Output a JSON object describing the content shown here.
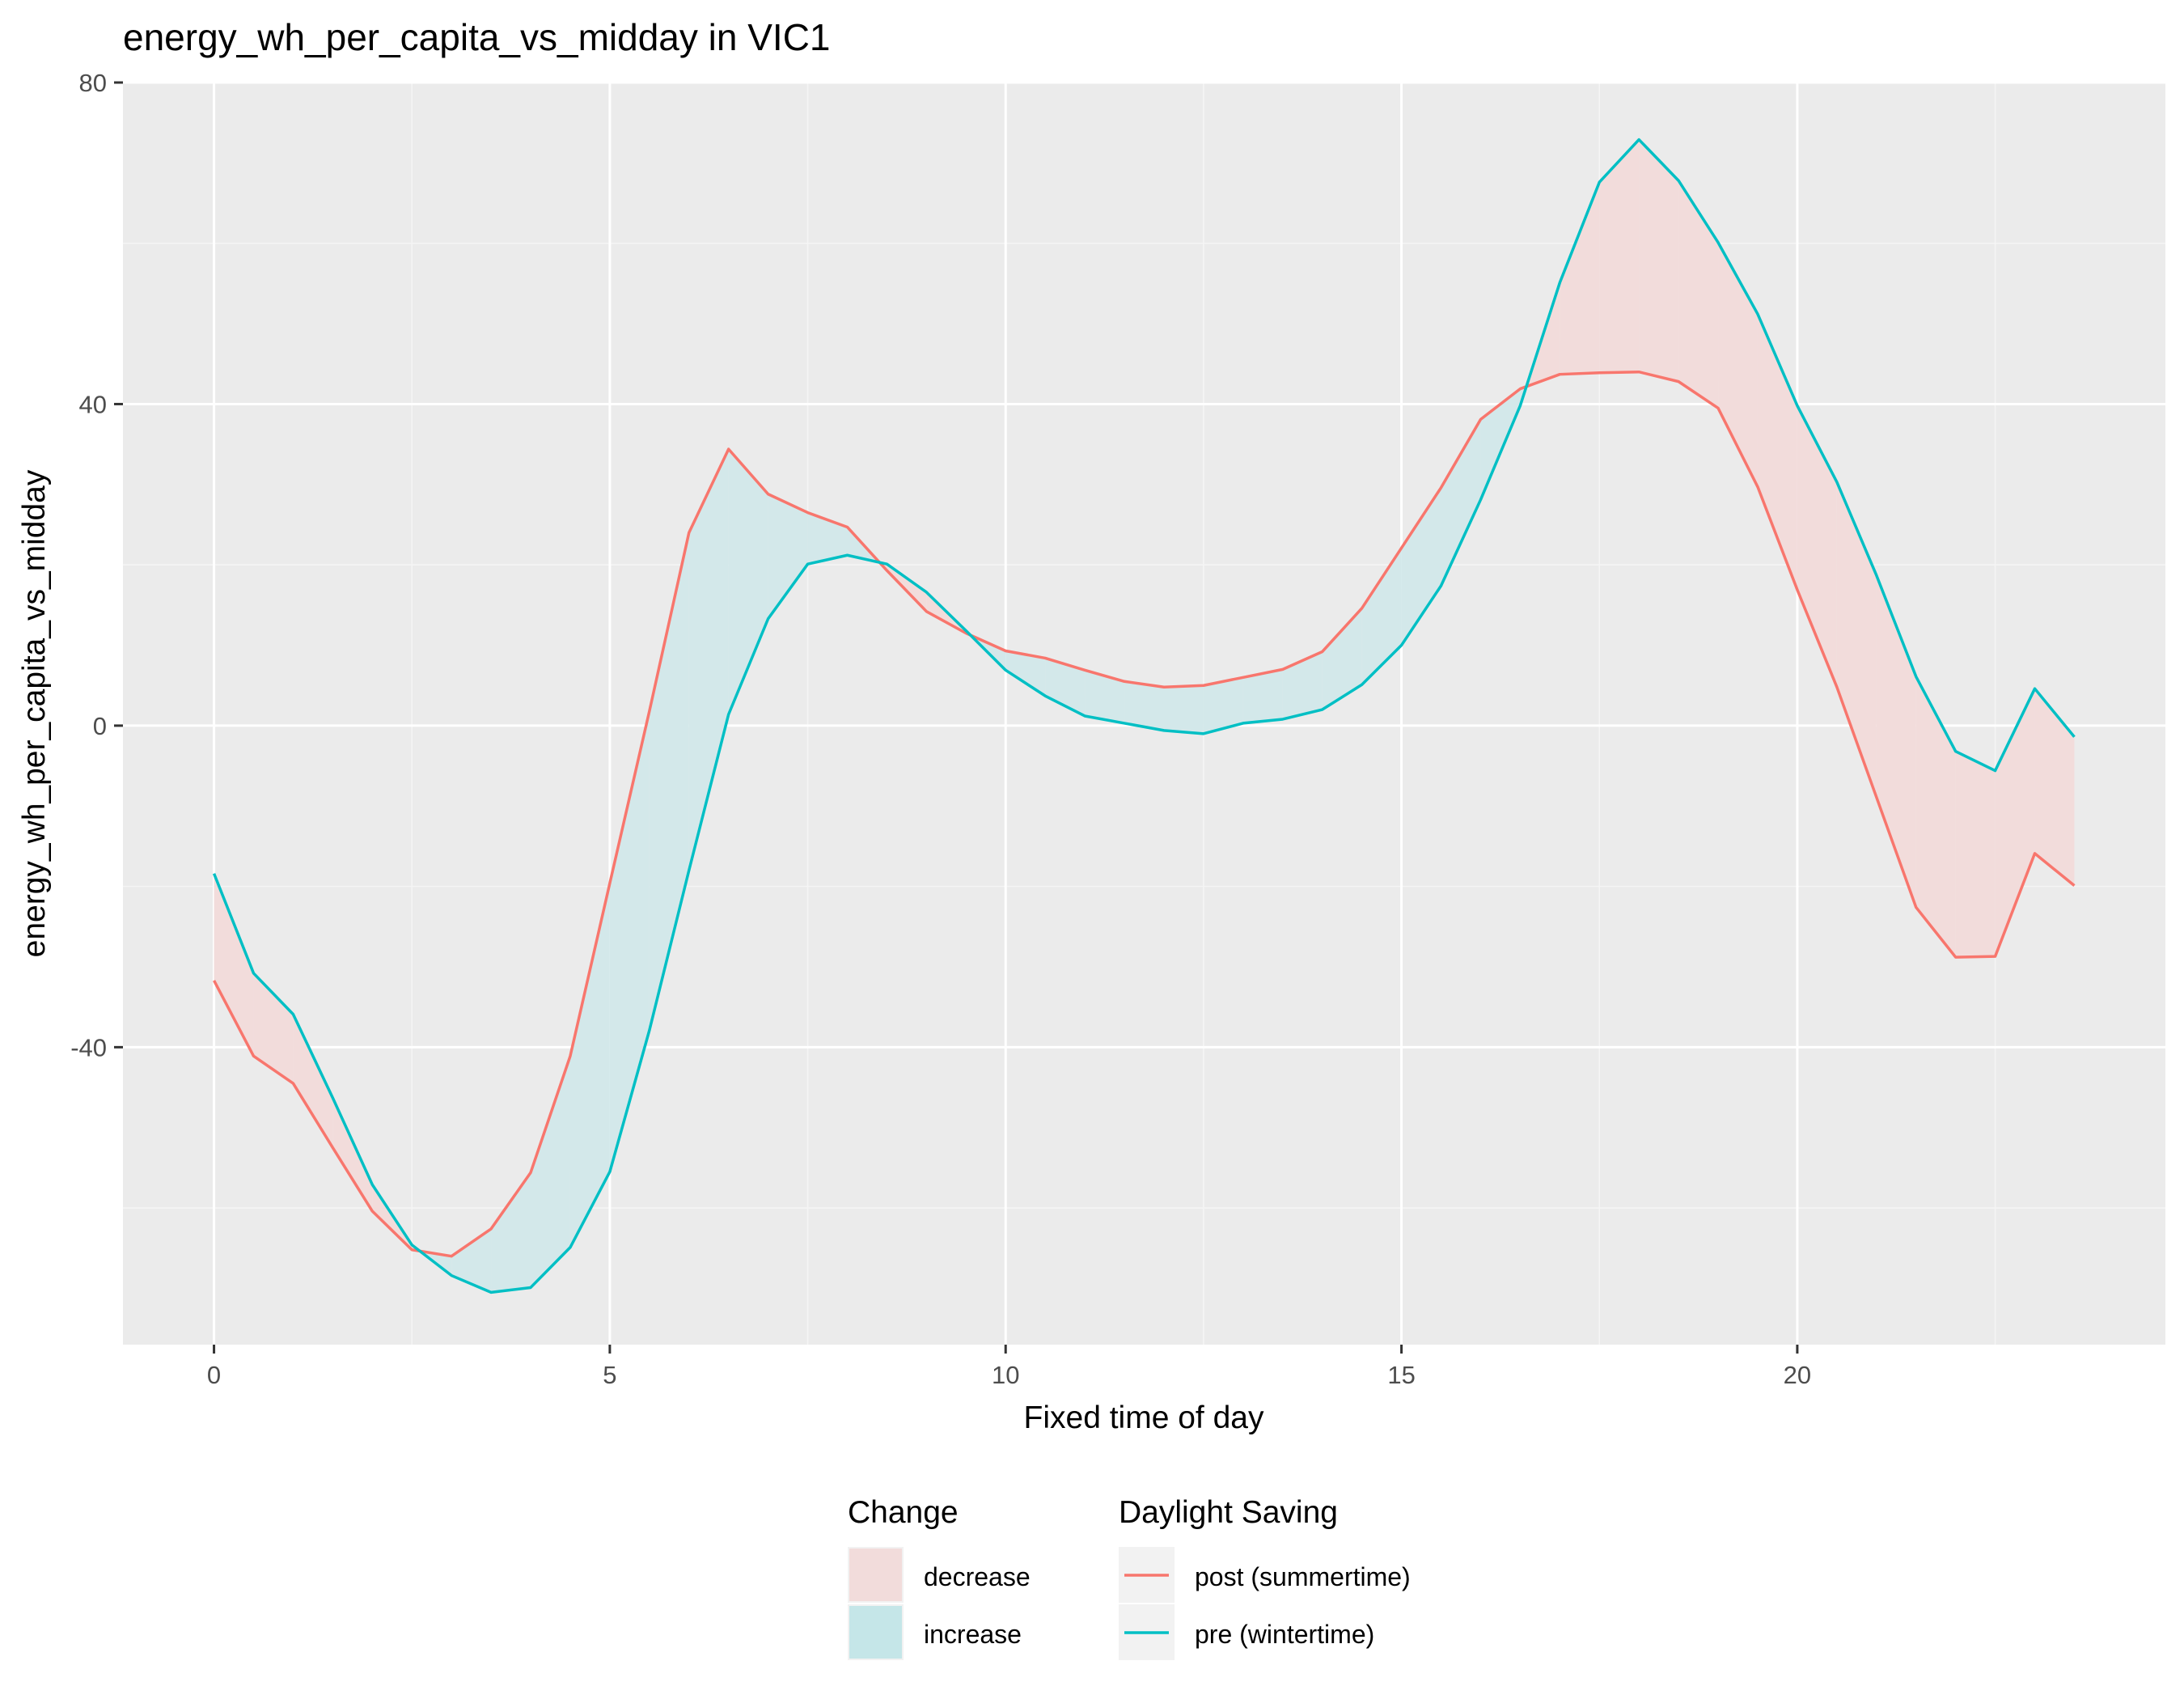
{
  "chart_data": {
    "type": "line",
    "title": "energy_wh_per_capita_vs_midday in VIC1",
    "xlabel": "Fixed time of day",
    "ylabel": "energy_wh_per_capita_vs_midday",
    "xlim": [
      -1.15,
      24.65
    ],
    "ylim": [
      -77,
      80
    ],
    "x_ticks": [
      0,
      5,
      10,
      15,
      20
    ],
    "x_tick_labels": [
      "0",
      "5",
      "10",
      "15",
      "20"
    ],
    "y_ticks": [
      -40,
      0,
      40,
      80
    ],
    "y_tick_labels": [
      "-40",
      "0",
      "40",
      "80"
    ],
    "grid": true,
    "legend_position": "bottom",
    "x": [
      0,
      0.5,
      1,
      1.5,
      2,
      2.5,
      3,
      3.5,
      4,
      4.5,
      5,
      5.5,
      6,
      6.5,
      7,
      7.5,
      8,
      8.5,
      9,
      9.5,
      10,
      10.5,
      11,
      11.5,
      12,
      12.5,
      13,
      13.5,
      14,
      14.5,
      15,
      15.5,
      16,
      16.5,
      17,
      17.5,
      18,
      18.5,
      19,
      19.5,
      20,
      20.5,
      21,
      21.5,
      22,
      22.5,
      23,
      23.5
    ],
    "series": [
      {
        "name": "post (summertime)",
        "color": "#F8766D",
        "values": [
          -31.7,
          -41.1,
          -44.5,
          -52.5,
          -60.4,
          -65.2,
          -66.0,
          -62.6,
          -55.6,
          -41.1,
          -19.6,
          1.8,
          24.0,
          34.4,
          28.8,
          26.5,
          24.7,
          19.3,
          14.2,
          11.5,
          9.3,
          8.4,
          6.9,
          5.5,
          4.8,
          5.0,
          6.0,
          7.0,
          9.2,
          14.6,
          22.1,
          29.6,
          38.1,
          41.9,
          43.7,
          43.9,
          44.0,
          42.8,
          39.5,
          29.7,
          16.9,
          4.8,
          -8.9,
          -22.6,
          -28.8,
          -28.7,
          -15.9,
          -19.9
        ]
      },
      {
        "name": "pre (wintertime)",
        "color": "#00BFC4",
        "values": [
          -18.4,
          -30.8,
          -35.9,
          -46.3,
          -57.1,
          -64.6,
          -68.4,
          -70.5,
          -69.9,
          -64.9,
          -55.5,
          -37.9,
          -18.0,
          1.4,
          13.3,
          20.1,
          21.2,
          20.1,
          16.6,
          11.8,
          6.9,
          3.7,
          1.2,
          0.3,
          -0.6,
          -1.0,
          0.3,
          0.8,
          2.0,
          5.1,
          10.0,
          17.4,
          28.1,
          39.8,
          55.1,
          67.6,
          72.9,
          67.8,
          60.1,
          51.2,
          39.8,
          30.3,
          18.7,
          6.1,
          -3.2,
          -5.6,
          4.6,
          -1.4
        ]
      }
    ],
    "fill_legend": {
      "title": "Change",
      "items": [
        {
          "label": "decrease",
          "color": "#F8766D"
        },
        {
          "label": "increase",
          "color": "#00BFC4"
        }
      ]
    },
    "line_legend": {
      "title": "Daylight Saving",
      "items": [
        {
          "label": "post (summertime)",
          "color": "#F8766D"
        },
        {
          "label": "pre (wintertime)",
          "color": "#00BFC4"
        }
      ]
    },
    "colors": {
      "panel_background": "#EBEBEB",
      "grid_major": "#FFFFFF",
      "grid_minor": "#F5F5F5",
      "ribbon_decrease": "#F2DCDB",
      "ribbon_increase": "#D3E8EA"
    }
  }
}
